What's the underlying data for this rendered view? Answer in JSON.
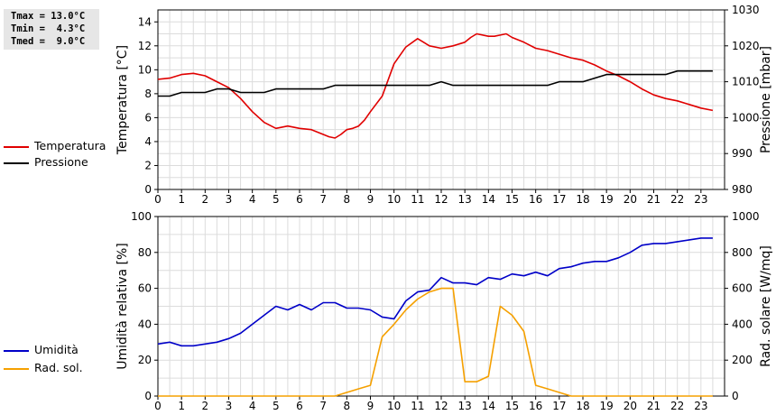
{
  "stats": {
    "tmax": "Tmax = 13.0°C",
    "tmin": "Tmin =  4.3°C",
    "tmed": "Tmed =  9.0°C"
  },
  "legend_top": [
    {
      "label": "Temperatura",
      "color": "#e00000"
    },
    {
      "label": "Pressione",
      "color": "#000000"
    }
  ],
  "legend_bottom": [
    {
      "label": "Umidità",
      "color": "#0000c8"
    },
    {
      "label": "Rad. sol.",
      "color": "#f5a000"
    }
  ],
  "chart_data": [
    {
      "type": "line",
      "xlabel": "",
      "ylabel": "Temperatura [°C]",
      "y2label": "Pressione [mbar]",
      "xlim": [
        0,
        24
      ],
      "x_ticks": [
        0,
        1,
        2,
        3,
        4,
        5,
        6,
        7,
        8,
        9,
        10,
        11,
        12,
        13,
        14,
        15,
        16,
        17,
        18,
        19,
        20,
        21,
        22,
        23
      ],
      "ylim": [
        0,
        15
      ],
      "y_ticks": [
        0,
        2,
        4,
        6,
        8,
        10,
        12,
        14
      ],
      "y2lim": [
        980,
        1030
      ],
      "y2_ticks": [
        980,
        990,
        1000,
        1010,
        1020,
        1030
      ],
      "grid": true,
      "series": [
        {
          "name": "Temperatura",
          "axis": "left",
          "color": "#e00000",
          "x": [
            0,
            0.5,
            1,
            1.5,
            2,
            2.5,
            3,
            3.5,
            4,
            4.5,
            5,
            5.5,
            6,
            6.5,
            7,
            7.25,
            7.5,
            7.75,
            8,
            8.25,
            8.5,
            8.75,
            9,
            9.5,
            10,
            10.5,
            11,
            11.25,
            11.5,
            12,
            12.5,
            13,
            13.25,
            13.5,
            14,
            14.25,
            14.5,
            14.75,
            15,
            15.5,
            16,
            16.5,
            17,
            17.5,
            18,
            18.5,
            19,
            19.5,
            20,
            20.5,
            21,
            21.5,
            22,
            22.5,
            23,
            23.5
          ],
          "y": [
            9.2,
            9.3,
            9.6,
            9.7,
            9.5,
            9.0,
            8.5,
            7.6,
            6.5,
            5.6,
            5.1,
            5.3,
            5.1,
            5.0,
            4.6,
            4.4,
            4.3,
            4.6,
            5.0,
            5.1,
            5.3,
            5.8,
            6.5,
            7.8,
            10.5,
            11.9,
            12.6,
            12.3,
            12.0,
            11.8,
            12.0,
            12.3,
            12.7,
            13.0,
            12.8,
            12.8,
            12.9,
            13.0,
            12.7,
            12.3,
            11.8,
            11.6,
            11.3,
            11.0,
            10.8,
            10.4,
            9.9,
            9.5,
            9.0,
            8.4,
            7.9,
            7.6,
            7.4,
            7.1,
            6.8,
            6.6
          ]
        },
        {
          "name": "Pressione",
          "axis": "right",
          "color": "#000000",
          "x": [
            0,
            0.5,
            1,
            1.5,
            2,
            2.5,
            3,
            3.5,
            4,
            4.5,
            5,
            5.5,
            6,
            6.5,
            7,
            7.5,
            8,
            8.5,
            9,
            9.5,
            10,
            10.5,
            11,
            11.5,
            12,
            12.5,
            13,
            13.5,
            14,
            14.5,
            15,
            15.5,
            16,
            16.5,
            17,
            17.5,
            18,
            18.5,
            19,
            19.5,
            20,
            20.5,
            21,
            21.5,
            22,
            22.5,
            23,
            23.5
          ],
          "y": [
            1006,
            1006,
            1007,
            1007,
            1007,
            1008,
            1008,
            1007,
            1007,
            1007,
            1008,
            1008,
            1008,
            1008,
            1008,
            1009,
            1009,
            1009,
            1009,
            1009,
            1009,
            1009,
            1009,
            1009,
            1010,
            1009,
            1009,
            1009,
            1009,
            1009,
            1009,
            1009,
            1009,
            1009,
            1010,
            1010,
            1010,
            1011,
            1012,
            1012,
            1012,
            1012,
            1012,
            1012,
            1013,
            1013,
            1013,
            1013
          ]
        }
      ]
    },
    {
      "type": "line",
      "xlabel": "",
      "ylabel": "Umidità relativa [%]",
      "y2label": "Rad. solare [W/mq]",
      "xlim": [
        0,
        24
      ],
      "x_ticks": [
        0,
        1,
        2,
        3,
        4,
        5,
        6,
        7,
        8,
        9,
        10,
        11,
        12,
        13,
        14,
        15,
        16,
        17,
        18,
        19,
        20,
        21,
        22,
        23
      ],
      "ylim": [
        0,
        100
      ],
      "y_ticks": [
        0,
        20,
        40,
        60,
        80,
        100
      ],
      "y2lim": [
        0,
        1000
      ],
      "y2_ticks": [
        0,
        200,
        400,
        600,
        800,
        1000
      ],
      "grid": true,
      "series": [
        {
          "name": "Umidità",
          "axis": "left",
          "color": "#0000c8",
          "x": [
            0,
            0.5,
            1,
            1.5,
            2,
            2.5,
            3,
            3.5,
            4,
            4.5,
            5,
            5.5,
            6,
            6.5,
            7,
            7.5,
            8,
            8.5,
            9,
            9.5,
            10,
            10.5,
            11,
            11.5,
            12,
            12.5,
            13,
            13.5,
            14,
            14.5,
            15,
            15.5,
            16,
            16.5,
            17,
            17.5,
            18,
            18.5,
            19,
            19.5,
            20,
            20.5,
            21,
            21.5,
            22,
            22.5,
            23,
            23.5
          ],
          "y": [
            29,
            30,
            28,
            28,
            29,
            30,
            32,
            35,
            40,
            45,
            50,
            48,
            51,
            48,
            52,
            52,
            49,
            49,
            48,
            44,
            43,
            53,
            58,
            59,
            66,
            63,
            63,
            62,
            66,
            65,
            68,
            67,
            69,
            67,
            71,
            72,
            74,
            75,
            75,
            77,
            80,
            84,
            85,
            85,
            86,
            87,
            88,
            88
          ]
        },
        {
          "name": "Rad. sol.",
          "axis": "right",
          "color": "#f5a000",
          "x": [
            0,
            7.5,
            8,
            8.5,
            9,
            9.5,
            10,
            10.5,
            11,
            11.5,
            12,
            12.5,
            13,
            13.5,
            14,
            14.5,
            15,
            15.5,
            16,
            16.5,
            17,
            17.5,
            23.5
          ],
          "y": [
            0,
            0,
            20,
            40,
            60,
            330,
            400,
            480,
            540,
            580,
            600,
            600,
            80,
            80,
            110,
            500,
            450,
            360,
            60,
            40,
            20,
            0,
            0
          ]
        }
      ]
    }
  ]
}
